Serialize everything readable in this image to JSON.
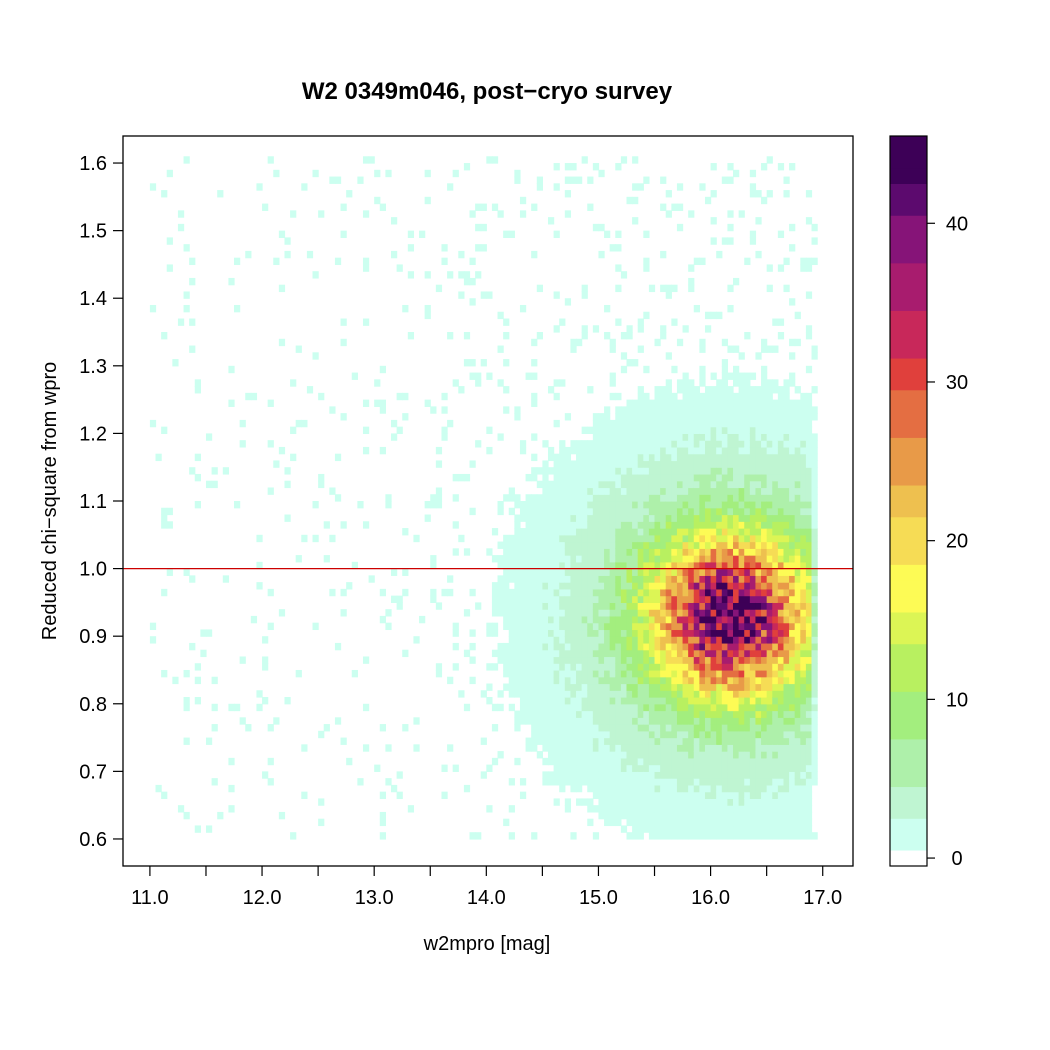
{
  "chart_data": {
    "type": "heatmap",
    "title": "W2 0349m046, post−cryo survey",
    "xlabel": "w2mpro [mag]",
    "ylabel": "Reduced chi−square from wpro",
    "xlim": [
      10.76,
      17.27
    ],
    "ylim": [
      0.56,
      1.64
    ],
    "x_ticks": [
      11.0,
      11.5,
      12.0,
      12.5,
      13.0,
      13.5,
      14.0,
      14.5,
      15.0,
      15.5,
      16.0,
      16.5,
      17.0
    ],
    "x_tick_labels": [
      "11.0",
      "12.0",
      "13.0",
      "14.0",
      "15.0",
      "16.0",
      "17.0"
    ],
    "x_tick_label_values": [
      11.0,
      12.0,
      13.0,
      14.0,
      15.0,
      16.0,
      17.0
    ],
    "y_ticks": [
      0.6,
      0.7,
      0.8,
      0.9,
      1.0,
      1.1,
      1.2,
      1.3,
      1.4,
      1.5,
      1.6
    ],
    "y_tick_labels": [
      "0.6",
      "0.7",
      "0.8",
      "0.9",
      "1.0",
      "1.1",
      "1.2",
      "1.3",
      "1.4",
      "1.5",
      "1.6"
    ],
    "bin_width_x": 0.05,
    "bin_width_y": 0.01,
    "reference_line": {
      "y": 1.0,
      "color": "#cc0000"
    },
    "density_model": {
      "peak": {
        "x": 16.15,
        "y": 0.925,
        "count": 46
      },
      "core_spread": {
        "sx": 0.45,
        "sy": 0.075
      },
      "halo_spread": {
        "sx": 0.95,
        "sy": 0.16
      },
      "faint_cutoff_mag": 16.95,
      "sparse_tail_range": {
        "x": [
          11.0,
          16.9
        ],
        "y": [
          0.6,
          1.6
        ]
      }
    },
    "colorbar": {
      "min": 0,
      "max": 46,
      "ticks": [
        0,
        10,
        20,
        30,
        40
      ],
      "tick_labels": [
        "0",
        "10",
        "20",
        "30",
        "40"
      ],
      "colors": [
        "#ffffff",
        "#ccfff0",
        "#bff5d2",
        "#aef0aa",
        "#a3ee7e",
        "#b8f060",
        "#dcf555",
        "#fdfb55",
        "#f6dc55",
        "#eec04f",
        "#e89a48",
        "#e46e42",
        "#e0403c",
        "#c8285a",
        "#a81c6e",
        "#861478",
        "#5c0a6e",
        "#3d0057"
      ]
    }
  }
}
